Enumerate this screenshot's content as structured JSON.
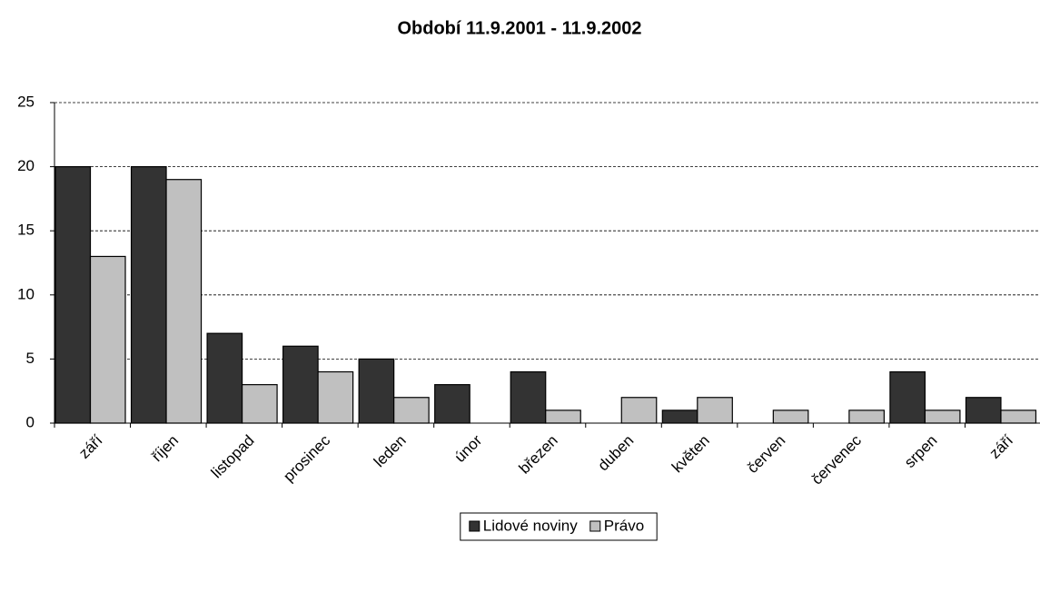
{
  "chart_data": {
    "type": "bar",
    "title": "Období 11.9.2001 - 11.9.2002",
    "categories": [
      "září",
      "říjen",
      "listopad",
      "prosinec",
      "leden",
      "únor",
      "březen",
      "duben",
      "květen",
      "červen",
      "červenec",
      "srpen",
      "září"
    ],
    "series": [
      {
        "name": "Lidové noviny",
        "color": "#333333",
        "values": [
          20,
          20,
          7,
          6,
          5,
          3,
          4,
          0,
          1,
          0,
          0,
          4,
          2
        ]
      },
      {
        "name": "Právo",
        "color": "#c0c0c0",
        "values": [
          13,
          19,
          3,
          4,
          2,
          0,
          1,
          2,
          2,
          1,
          1,
          1,
          1
        ]
      }
    ],
    "ylim": [
      0,
      25
    ],
    "yticks": [
      0,
      5,
      10,
      15,
      20,
      25
    ],
    "grid": true,
    "legend": "bottom"
  }
}
